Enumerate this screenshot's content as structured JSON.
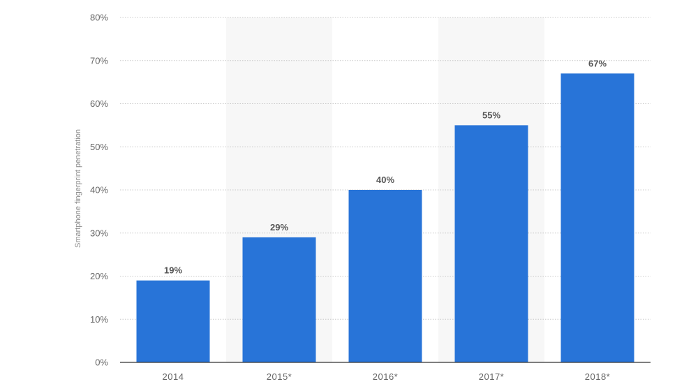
{
  "chart_data": {
    "type": "bar",
    "title": "",
    "xlabel": "",
    "ylabel": "Smartphone fingerprint penetration",
    "categories": [
      "2014",
      "2015*",
      "2016*",
      "2017*",
      "2018*"
    ],
    "values": [
      19,
      29,
      40,
      55,
      67
    ],
    "value_labels": [
      "19%",
      "29%",
      "40%",
      "55%",
      "67%"
    ],
    "y_ticks": [
      0,
      10,
      20,
      30,
      40,
      50,
      60,
      70,
      80
    ],
    "y_tick_labels": [
      "0%",
      "10%",
      "20%",
      "30%",
      "40%",
      "50%",
      "60%",
      "70%",
      "80%"
    ],
    "ylim": [
      0,
      80
    ],
    "grid": true,
    "legend": "none",
    "alternate_column_shading": true,
    "colors": {
      "bar": "#2874d8",
      "grid": "#c8c8c8",
      "band": "#f7f7f7",
      "axis": "#333333"
    }
  }
}
